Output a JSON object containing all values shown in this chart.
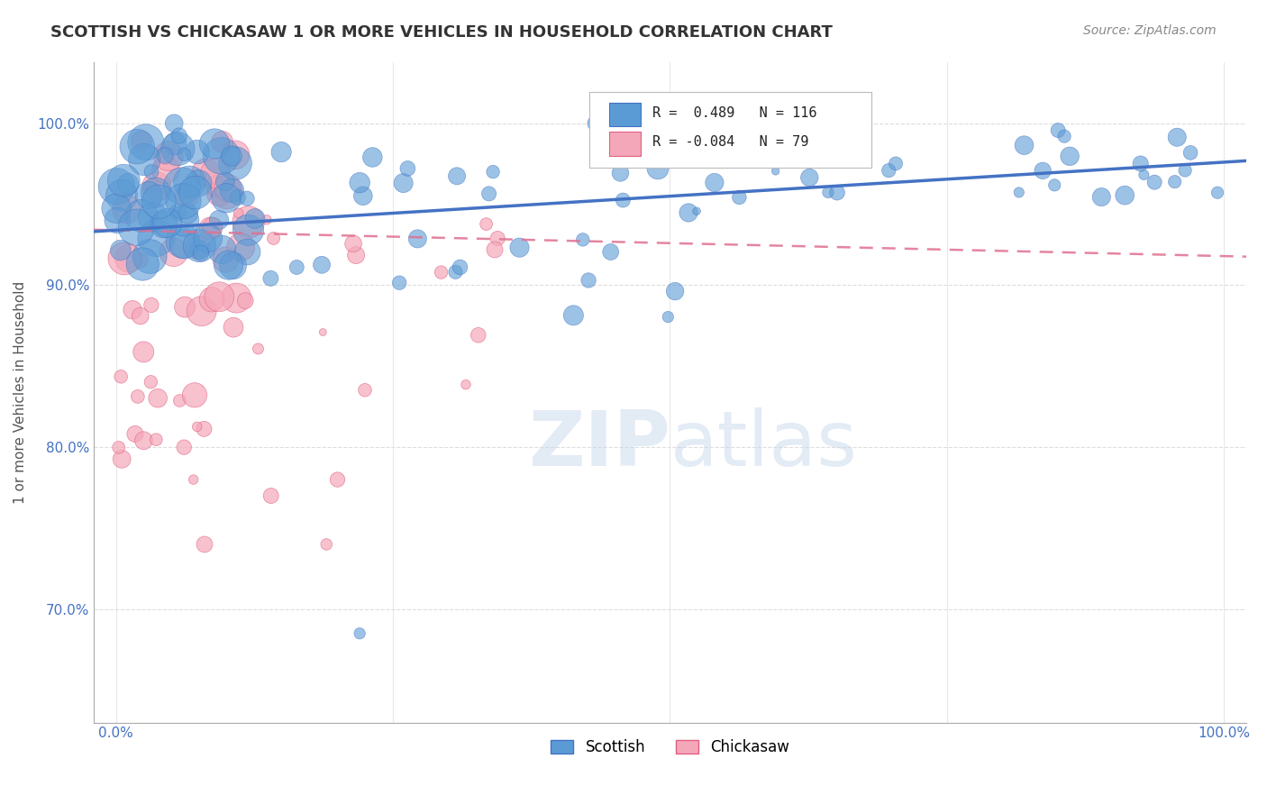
{
  "title": "SCOTTISH VS CHICKASAW 1 OR MORE VEHICLES IN HOUSEHOLD CORRELATION CHART",
  "source": "Source: ZipAtlas.com",
  "ylabel": "1 or more Vehicles in Household",
  "ytick_labels": [
    "100.0%",
    "90.0%",
    "80.0%",
    "70.0%"
  ],
  "ytick_values": [
    1.0,
    0.9,
    0.8,
    0.7
  ],
  "r_scottish": 0.489,
  "n_scottish": 116,
  "r_chickasaw": -0.084,
  "n_chickasaw": 79,
  "title_color": "#333333",
  "source_color": "#888888",
  "grid_color": "#dddddd",
  "tick_label_color": "#4472c4",
  "scottish_color": "#5b9bd5",
  "scottish_edge": "#4472c4",
  "chickasaw_color": "#f4a7b9",
  "chickasaw_edge": "#e06080",
  "trendline_scottish_color": "#4472c4",
  "trendline_chickasaw_color": "#e07090",
  "background_color": "#ffffff",
  "sc_slope": 0.042,
  "sc_intercept": 0.934,
  "ch_slope": -0.016,
  "ch_intercept": 0.934
}
